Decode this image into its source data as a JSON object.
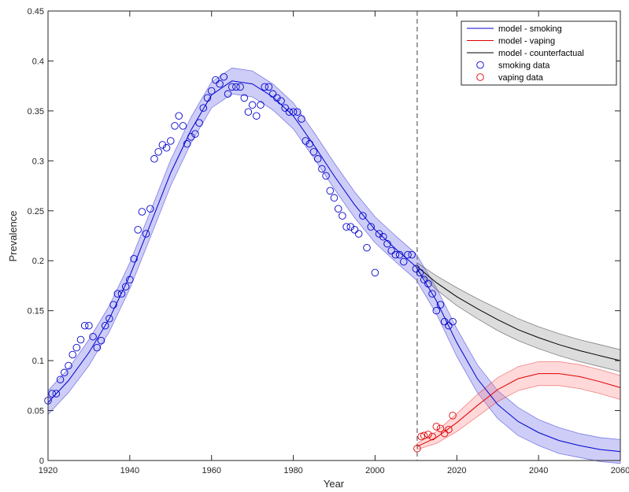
{
  "chart_data": {
    "type": "line",
    "xlabel": "Year",
    "ylabel": "Prevalence",
    "xlim": [
      1920,
      2060
    ],
    "ylim": [
      0,
      0.45
    ],
    "xticks": [
      1920,
      1940,
      1960,
      1980,
      2000,
      2020,
      2040,
      2060
    ],
    "xtick_labels": [
      "1920",
      "1940",
      "1960",
      "1980",
      "2000",
      "2020",
      "2040",
      "2060"
    ],
    "yticks": [
      0,
      0.05,
      0.1,
      0.15,
      0.2,
      0.25,
      0.3,
      0.35,
      0.4,
      0.45
    ],
    "ytick_labels": [
      "0",
      "0.05",
      "0.1",
      "0.15",
      "0.2",
      "0.25",
      "0.3",
      "0.35",
      "0.4",
      "0.45"
    ],
    "grid": false,
    "legend_position": "top-right",
    "vertical_reference_line": {
      "x": 2010.3,
      "style": "dashed",
      "color": "#808080"
    },
    "series": [
      {
        "name": "model - smoking",
        "kind": "line",
        "color": "#0000CD",
        "band_color": "#5a5ae6",
        "x": [
          1920,
          1925,
          1930,
          1935,
          1940,
          1945,
          1950,
          1955,
          1960,
          1965,
          1970,
          1975,
          1980,
          1985,
          1990,
          1995,
          2000,
          2005,
          2010,
          2015,
          2020,
          2025,
          2030,
          2035,
          2040,
          2045,
          2050,
          2055,
          2060
        ],
        "y": [
          0.058,
          0.08,
          0.108,
          0.142,
          0.185,
          0.236,
          0.288,
          0.331,
          0.366,
          0.38,
          0.377,
          0.364,
          0.345,
          0.316,
          0.285,
          0.256,
          0.231,
          0.212,
          0.194,
          0.16,
          0.118,
          0.082,
          0.056,
          0.039,
          0.028,
          0.02,
          0.015,
          0.011,
          0.009
        ],
        "band_halfwidth": [
          0.012,
          0.012,
          0.013,
          0.013,
          0.013,
          0.013,
          0.013,
          0.013,
          0.013,
          0.013,
          0.013,
          0.013,
          0.013,
          0.013,
          0.013,
          0.013,
          0.013,
          0.013,
          0.013,
          0.013,
          0.014,
          0.014,
          0.014,
          0.014,
          0.013,
          0.013,
          0.012,
          0.012,
          0.012
        ]
      },
      {
        "name": "model - vaping",
        "kind": "line",
        "color": "#E00000",
        "band_color": "#ff8080",
        "x": [
          2010.3,
          2015,
          2020,
          2025,
          2030,
          2035,
          2040,
          2045,
          2050,
          2055,
          2060
        ],
        "y": [
          0.014,
          0.023,
          0.038,
          0.055,
          0.071,
          0.082,
          0.087,
          0.087,
          0.084,
          0.079,
          0.073
        ],
        "band_halfwidth": [
          0.003,
          0.006,
          0.009,
          0.011,
          0.012,
          0.012,
          0.012,
          0.012,
          0.012,
          0.012,
          0.012
        ]
      },
      {
        "name": "model - counterfactual",
        "kind": "line",
        "color": "#000000",
        "band_color": "#8c8c8c",
        "x": [
          2010.3,
          2015,
          2020,
          2025,
          2030,
          2035,
          2040,
          2045,
          2050,
          2055,
          2060
        ],
        "y": [
          0.194,
          0.178,
          0.164,
          0.152,
          0.141,
          0.131,
          0.123,
          0.116,
          0.11,
          0.105,
          0.1
        ],
        "band_halfwidth": [
          0.004,
          0.007,
          0.009,
          0.01,
          0.011,
          0.011,
          0.011,
          0.011,
          0.011,
          0.011,
          0.011
        ]
      },
      {
        "name": "smoking data",
        "kind": "scatter",
        "color": "#0000CD",
        "x": [
          1920,
          1921,
          1922,
          1923,
          1924,
          1925,
          1926,
          1927,
          1928,
          1929,
          1930,
          1931,
          1932,
          1933,
          1934,
          1935,
          1936,
          1937,
          1938,
          1939,
          1940,
          1941,
          1942,
          1943,
          1944,
          1945,
          1946,
          1947,
          1948,
          1949,
          1950,
          1951,
          1952,
          1953,
          1954,
          1955,
          1956,
          1957,
          1958,
          1959,
          1960,
          1961,
          1962,
          1963,
          1964,
          1965,
          1966,
          1967,
          1968,
          1969,
          1970,
          1971,
          1972,
          1973,
          1974,
          1975,
          1976,
          1977,
          1978,
          1979,
          1980,
          1981,
          1982,
          1983,
          1984,
          1985,
          1986,
          1987,
          1988,
          1989,
          1990,
          1991,
          1992,
          1993,
          1994,
          1995,
          1996,
          1997,
          1998,
          1999,
          2000,
          2001,
          2002,
          2003,
          2004,
          2005,
          2006,
          2007,
          2008,
          2009,
          2010,
          2011,
          2012,
          2013,
          2014,
          2015,
          2016,
          2017,
          2018,
          2019
        ],
        "y": [
          0.06,
          0.067,
          0.067,
          0.081,
          0.088,
          0.095,
          0.106,
          0.113,
          0.121,
          0.135,
          0.135,
          0.124,
          0.113,
          0.12,
          0.135,
          0.142,
          0.156,
          0.167,
          0.167,
          0.174,
          0.181,
          0.202,
          0.231,
          0.249,
          0.227,
          0.252,
          0.302,
          0.309,
          0.316,
          0.313,
          0.32,
          0.335,
          0.345,
          0.335,
          0.317,
          0.324,
          0.327,
          0.338,
          0.353,
          0.363,
          0.37,
          0.381,
          0.377,
          0.384,
          0.367,
          0.374,
          0.374,
          0.374,
          0.363,
          0.349,
          0.356,
          0.345,
          0.356,
          0.374,
          0.374,
          0.367,
          0.363,
          0.36,
          0.353,
          0.349,
          0.349,
          0.349,
          0.342,
          0.32,
          0.317,
          0.309,
          0.302,
          0.292,
          0.285,
          0.27,
          0.263,
          0.252,
          0.245,
          0.234,
          0.234,
          0.231,
          0.227,
          0.245,
          0.213,
          0.234,
          0.188,
          0.227,
          0.224,
          0.217,
          0.21,
          0.206,
          0.206,
          0.199,
          0.206,
          0.206,
          0.192,
          0.188,
          0.181,
          0.177,
          0.167,
          0.15,
          0.156,
          0.139,
          0.135,
          0.139
        ]
      },
      {
        "name": "vaping data",
        "kind": "scatter",
        "color": "#E00000",
        "x": [
          2010.3,
          2011.3,
          2012,
          2013,
          2014,
          2015,
          2016,
          2017,
          2018,
          2019
        ],
        "y": [
          0.012,
          0.024,
          0.025,
          0.026,
          0.024,
          0.034,
          0.032,
          0.027,
          0.031,
          0.045
        ]
      }
    ]
  }
}
